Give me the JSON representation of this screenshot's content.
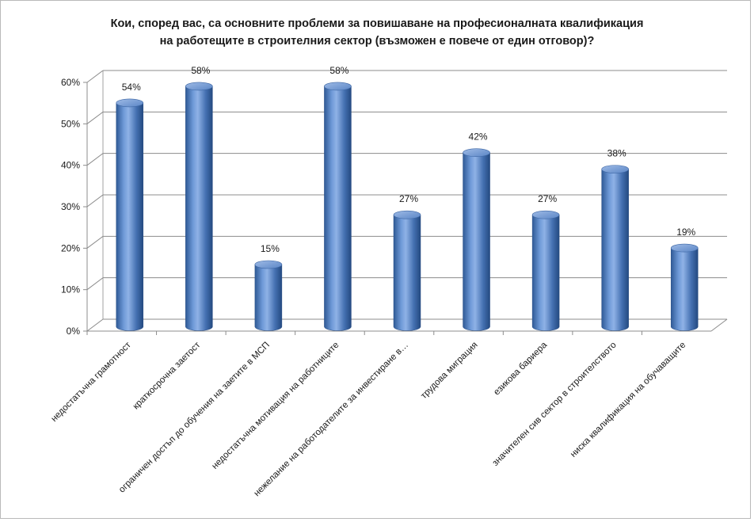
{
  "chart_data": {
    "type": "bar",
    "title_lines": [
      "Кои, според вас, са основните проблеми за повишаване на професионалната квалификация",
      "на работещите в строителния сектор (възможен е повече от един отговор)?"
    ],
    "categories": [
      "недостатъчна грамотност",
      "краткосрочна заетост",
      "ограничен достъп до обучения на заетите в МСП",
      "недостатъчна мотивация на работниците",
      "нежелание на работодателите за инвестиране в…",
      "трудова миграция",
      "езикова бариера",
      "значителен сив сектор в строителството",
      "ниска квалификация  на обучаващите"
    ],
    "values": [
      54,
      58,
      15,
      58,
      27,
      42,
      27,
      38,
      19
    ],
    "value_labels": [
      "54%",
      "58%",
      "15%",
      "58%",
      "27%",
      "42%",
      "27%",
      "38%",
      "19%"
    ],
    "y_ticks": [
      "0%",
      "10%",
      "20%",
      "30%",
      "40%",
      "50%",
      "60%"
    ],
    "ylim": [
      0,
      60
    ],
    "grid": true,
    "legend": "none",
    "colors": {
      "bar": "#4f81bd",
      "bar_dark": "#2b4f86",
      "bar_light": "#95b5e3",
      "grid": "#8c8c8c"
    }
  }
}
